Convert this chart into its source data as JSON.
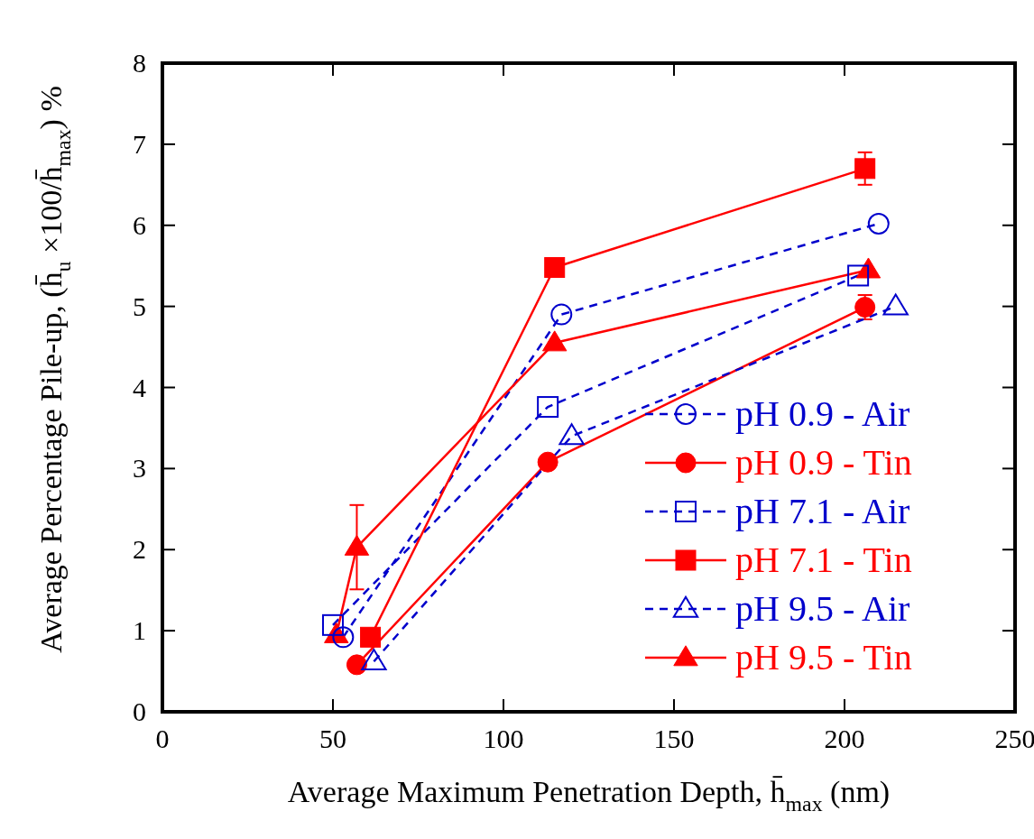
{
  "chart_data": {
    "type": "line",
    "xlabel": "Average Maximum Penetration Depth, h̄$_{max}$ (nm)",
    "ylabel": "Average Percentage Pile-up, (h̄$_{u}$ ×100/h̄$_{max}$) %",
    "xlim": [
      0,
      250
    ],
    "xticks": [
      0,
      50,
      100,
      150,
      200,
      250
    ],
    "ylim": [
      0,
      8
    ],
    "yticks": [
      0,
      1,
      2,
      3,
      4,
      5,
      6,
      7,
      8
    ],
    "grid": false,
    "legend": "bottom right",
    "series": [
      {
        "name": "pH 0.9 - Air",
        "color": "#0000cc",
        "x": [
          53,
          117,
          210
        ],
        "values": [
          0.92,
          4.9,
          6.02
        ],
        "marker": "circle",
        "line_style": "dashed"
      },
      {
        "name": "pH 0.9 - Tin",
        "color": "#ff0000",
        "x": [
          57,
          113,
          206
        ],
        "values": [
          0.58,
          3.08,
          4.99
        ],
        "errors": [
          null,
          null,
          0.15
        ],
        "marker": "circle",
        "line_style": "solid"
      },
      {
        "name": "pH 7.1 - Air",
        "color": "#0000cc",
        "x": [
          50,
          113,
          204
        ],
        "values": [
          1.07,
          3.76,
          5.38
        ],
        "marker": "square",
        "line_style": "dashed"
      },
      {
        "name": "pH 7.1 - Tin",
        "color": "#ff0000",
        "x": [
          61,
          115,
          206
        ],
        "values": [
          0.92,
          5.48,
          6.7
        ],
        "errors": [
          null,
          null,
          0.2
        ],
        "marker": "square",
        "line_style": "solid"
      },
      {
        "name": "pH 9.5 - Air",
        "color": "#0000cc",
        "x": [
          62,
          120,
          215
        ],
        "values": [
          0.62,
          3.4,
          5.0
        ],
        "marker": "triangle",
        "line_style": "dashed"
      },
      {
        "name": "pH 9.5 - Tin",
        "color": "#ff0000",
        "x": [
          51,
          57,
          115,
          207
        ],
        "values": [
          0.95,
          2.03,
          4.55,
          5.45
        ],
        "errors": [
          null,
          0.52,
          null,
          null
        ],
        "marker": "triangle",
        "line_style": "solid"
      }
    ]
  }
}
